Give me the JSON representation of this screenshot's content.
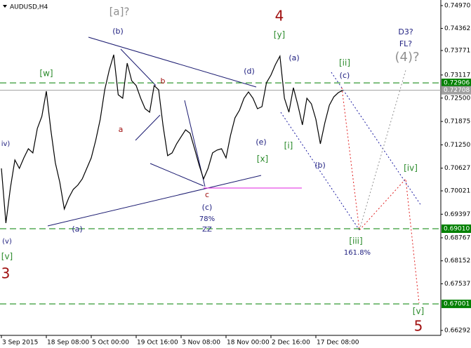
{
  "chart_data": {
    "type": "line",
    "title": "AUDUSD,H4",
    "color": "#000000",
    "categories": [
      "3 Sep 2015",
      null,
      null,
      null,
      null,
      null,
      null,
      null,
      null,
      null,
      "18 Sep 08:00",
      null,
      null,
      null,
      null,
      null,
      null,
      null,
      null,
      null,
      "5 Oct 00:00",
      null,
      null,
      null,
      null,
      null,
      null,
      null,
      null,
      null,
      "19 Oct 16:00",
      null,
      null,
      null,
      null,
      null,
      null,
      null,
      null,
      null,
      "3 Nov 08:00",
      null,
      null,
      null,
      null,
      null,
      null,
      null,
      null,
      null,
      "18 Nov 00:00",
      null,
      null,
      null,
      null,
      null,
      null,
      null,
      null,
      null,
      "2 Dec 16:00",
      null,
      null,
      null,
      null,
      null,
      null,
      null,
      null,
      null,
      "17 Dec 08:00",
      null,
      null,
      null,
      null,
      null,
      null
    ],
    "values": [
      0.70622,
      0.69161,
      0.70098,
      0.70847,
      0.70622,
      0.70903,
      0.71147,
      0.71035,
      0.7169,
      0.72009,
      0.72684,
      0.71653,
      0.70772,
      0.70248,
      0.69535,
      0.69835,
      0.7006,
      0.70173,
      0.70341,
      0.70622,
      0.70903,
      0.71372,
      0.71934,
      0.72721,
      0.73246,
      0.73658,
      0.7259,
      0.72496,
      0.73433,
      0.72965,
      0.72834,
      0.72496,
      0.72215,
      0.72122,
      0.72834,
      0.72721,
      0.71747,
      0.7096,
      0.71035,
      0.71278,
      0.71466,
      0.71653,
      0.71559,
      0.71147,
      0.70716,
      0.70341,
      0.70622,
      0.71035,
      0.7111,
      0.71147,
      0.70903,
      0.71503,
      0.71972,
      0.72178,
      0.72496,
      0.72665,
      0.72496,
      0.72215,
      0.72271,
      0.72909,
      0.73115,
      0.73396,
      0.73621,
      0.72496,
      0.72122,
      0.72777,
      0.72309,
      0.71784,
      0.72496,
      0.72346,
      0.71934,
      0.71278,
      0.7184,
      0.72309,
      0.72534,
      0.72646,
      0.72708
    ],
    "ylim": [
      0.6616,
      0.7512
    ],
    "yticks": [
      {
        "value": 0.7497,
        "label": "0.74970"
      },
      0.74362,
      0.73771,
      0.73117,
      {
        "value": 0.725,
        "label": "0.72500"
      },
      0.71875,
      {
        "value": 0.7125,
        "label": "0.71250"
      },
      0.70627,
      0.70021,
      0.69397,
      0.68767,
      0.68152,
      0.67537,
      0.66292
    ],
    "levels": [
      {
        "value": 0.72906,
        "label": "0.72906",
        "color": "#008000",
        "style": "dashed"
      },
      {
        "value": 0.72708,
        "label": "0.72708",
        "color": "#a0a0a0",
        "style": "solid"
      },
      {
        "value": 0.6901,
        "label": "0.69010",
        "color": "#008000",
        "style": "dashed"
      },
      {
        "value": 0.67001,
        "label": "0.67001",
        "color": "#008000",
        "style": "dashed"
      }
    ],
    "annotations": [
      {
        "text": "[a]?",
        "color": "#909090"
      },
      {
        "text": "4",
        "color": "#a01010"
      },
      {
        "text": "[y]",
        "color": "#2a8a2a"
      },
      {
        "text": "(b)",
        "color": "#202080"
      },
      {
        "text": "[w]",
        "color": "#2a8a2a"
      },
      {
        "text": "(a)",
        "color": "#202080"
      },
      {
        "text": "(d)",
        "color": "#202080"
      },
      {
        "text": "b",
        "color": "#a01010"
      },
      {
        "text": "a",
        "color": "#a01010"
      },
      {
        "text": "[ii]",
        "color": "#2a8a2a"
      },
      {
        "text": "(c)",
        "color": "#202080"
      },
      {
        "text": "D3?",
        "color": "#202080"
      },
      {
        "text": "FL?",
        "color": "#202080"
      },
      {
        "text": "(4)?",
        "color": "#909090"
      },
      {
        "text": "iv)",
        "color": "#202080"
      },
      {
        "text": "(e)",
        "color": "#202080"
      },
      {
        "text": "[x]",
        "color": "#2a8a2a"
      },
      {
        "text": "[i]",
        "color": "#2a8a2a"
      },
      {
        "text": "(b)",
        "color": "#202080"
      },
      {
        "text": "[iv]",
        "color": "#2a8a2a"
      },
      {
        "text": "c",
        "color": "#a01010"
      },
      {
        "text": "(c)",
        "color": "#202080"
      },
      {
        "text": "78%",
        "color": "#202080"
      },
      {
        "text": "ZZ",
        "color": "#202080"
      },
      {
        "text": "(a)",
        "color": "#202080"
      },
      {
        "text": "(v)",
        "color": "#202080"
      },
      {
        "text": "[v]",
        "color": "#2a8a2a"
      },
      {
        "text": "3",
        "color": "#a01010"
      },
      {
        "text": "[iii]",
        "color": "#2a8a2a"
      },
      {
        "text": "161.8%",
        "color": "#202080"
      },
      {
        "text": "[v]",
        "color": "#2a8a2a"
      },
      {
        "text": "5",
        "color": "#a01010"
      }
    ]
  }
}
